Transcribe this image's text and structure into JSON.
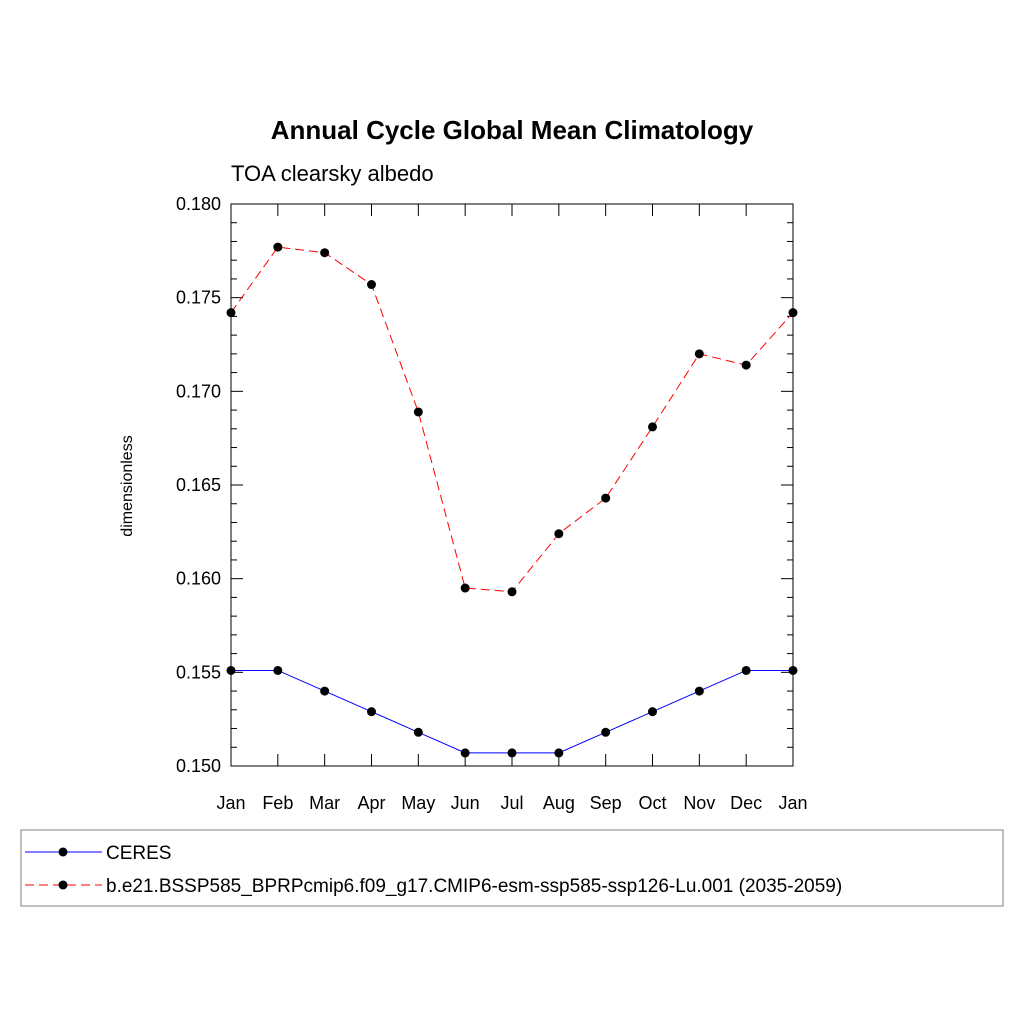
{
  "chart_data": {
    "type": "line",
    "title": "Annual Cycle Global Mean Climatology",
    "subtitle": "TOA clearsky albedo",
    "ylabel": "dimensionless",
    "xlabel": "",
    "categories": [
      "Jan",
      "Feb",
      "Mar",
      "Apr",
      "May",
      "Jun",
      "Jul",
      "Aug",
      "Sep",
      "Oct",
      "Nov",
      "Dec",
      "Jan"
    ],
    "ylim": [
      0.15,
      0.18
    ],
    "yticks": [
      "0.150",
      "0.155",
      "0.160",
      "0.165",
      "0.170",
      "0.175",
      "0.180"
    ],
    "grid": false,
    "legend_position": "bottom",
    "series": [
      {
        "name": "CERES",
        "color": "#0000ff",
        "dash": "solid",
        "marker": "dot",
        "values": [
          0.1551,
          0.1551,
          0.154,
          0.1529,
          0.1518,
          0.1507,
          0.1507,
          0.1507,
          0.1518,
          0.1529,
          0.154,
          0.1551,
          0.1551
        ]
      },
      {
        "name": "b.e21.BSSP585_BPRPcmip6.f09_g17.CMIP6-esm-ssp585-ssp126-Lu.001 (2035-2059)",
        "color": "#ff0000",
        "dash": "dashed",
        "marker": "dot",
        "values": [
          0.1742,
          0.1777,
          0.1774,
          0.1757,
          0.1689,
          0.1595,
          0.1593,
          0.1624,
          0.1643,
          0.1681,
          0.172,
          0.1714,
          0.1742
        ]
      }
    ]
  }
}
